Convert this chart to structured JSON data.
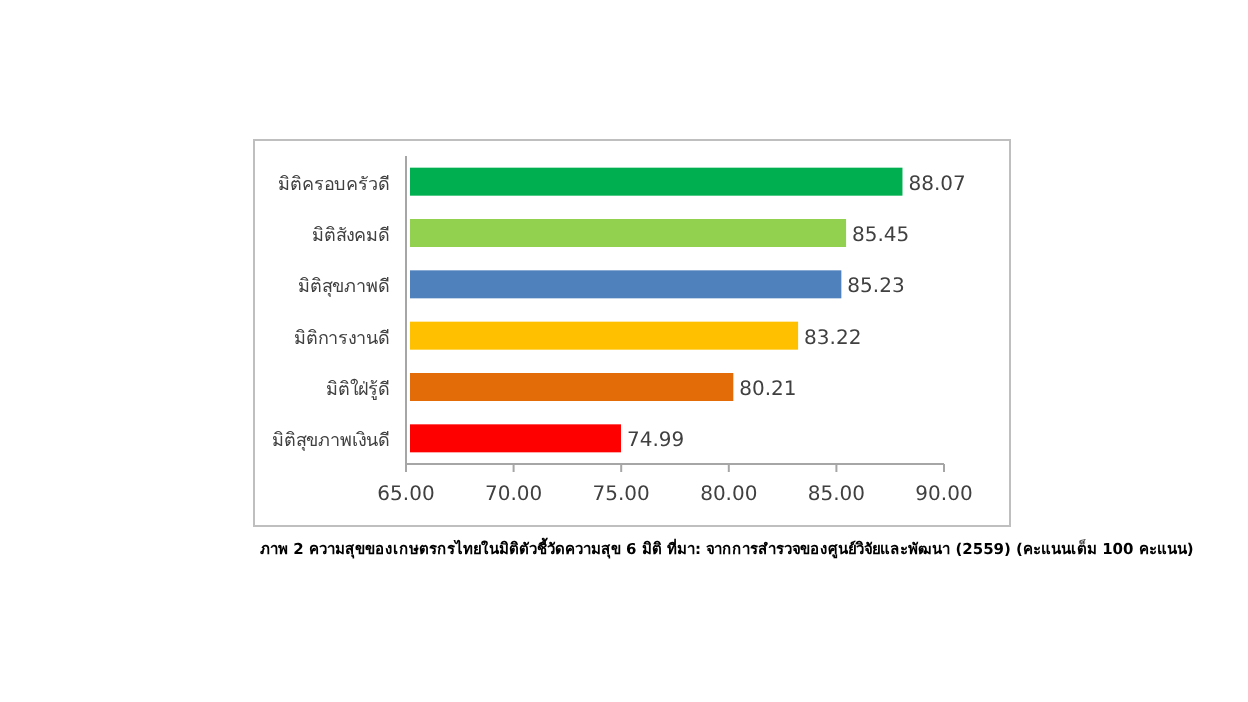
{
  "chart_data": {
    "type": "bar",
    "orientation": "horizontal",
    "categories": [
      "มิติครอบครัวดี",
      "มิติสังคมดี",
      "มิติสุขภาพดี",
      "มิติการงานดี",
      "มิติใฝ่รู้ดี",
      "มิติสุขภาพเงินดี"
    ],
    "values": [
      88.07,
      85.45,
      85.23,
      83.22,
      80.21,
      74.99
    ],
    "colors": [
      "#00b050",
      "#92d050",
      "#4f81bd",
      "#ffc000",
      "#e36c09",
      "#ff0000"
    ],
    "xlim": [
      65,
      90
    ],
    "xticks": [
      {
        "value": 65,
        "label": "65.00"
      },
      {
        "value": 70,
        "label": "70.00"
      },
      {
        "value": 75,
        "label": "75.00"
      },
      {
        "value": 80,
        "label": "80.00"
      },
      {
        "value": 85,
        "label": "85.00"
      },
      {
        "value": 90,
        "label": "90.00"
      }
    ],
    "data_labels": true,
    "grid": false,
    "annotations": [
      "ภาพ 2 ความสุขของเกษตรกรไทยในมิติตัวชี้วัดความสุข 6 มิติ   ที่มา: จากการสำรวจของศูนย์วิจัยและพัฒนา (2559) (คะแนนเต็ม 100 คะแนน)"
    ]
  }
}
